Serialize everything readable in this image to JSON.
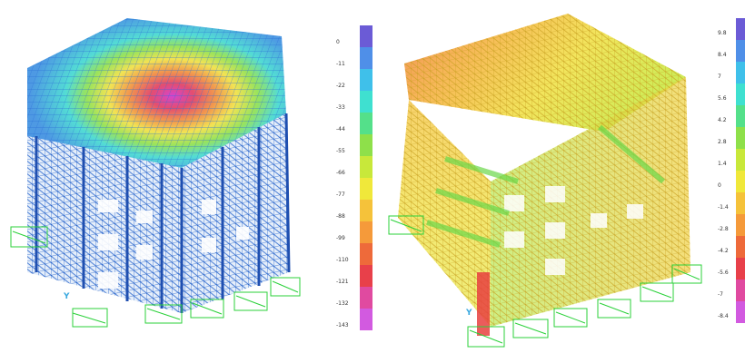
{
  "figures": [
    {
      "id": "left",
      "axis_label": "Y",
      "color_scale": {
        "ticks": [
          "0",
          "-11",
          "-22",
          "-33",
          "-44",
          "-55",
          "-66",
          "-77",
          "-88",
          "-99",
          "-110",
          "-121",
          "-132",
          "-143"
        ],
        "colors_top_to_bottom": [
          "#6b5bd6",
          "#4f8fe8",
          "#3fc0ea",
          "#3fe0d0",
          "#54e08a",
          "#8ee04a",
          "#c8e83a",
          "#f0e83a",
          "#f5c23a",
          "#f59a3a",
          "#ee6a3a",
          "#e8404a",
          "#e04aa0",
          "#d25ae0"
        ]
      }
    },
    {
      "id": "right",
      "axis_label": "Y",
      "color_scale": {
        "ticks": [
          "9.8",
          "8.4",
          "7",
          "5.6",
          "4.2",
          "2.8",
          "1.4",
          "0",
          "-1.4",
          "-2.8",
          "-4.2",
          "-5.6",
          "-7",
          "-8.4"
        ],
        "colors_top_to_bottom": [
          "#6b5bd6",
          "#4f8fe8",
          "#3fc0ea",
          "#3fe0d0",
          "#54e08a",
          "#8ee04a",
          "#c8e83a",
          "#f0e83a",
          "#f5c23a",
          "#f59a3a",
          "#ee6a3a",
          "#e8404a",
          "#e04aa0",
          "#d25ae0"
        ]
      }
    }
  ]
}
